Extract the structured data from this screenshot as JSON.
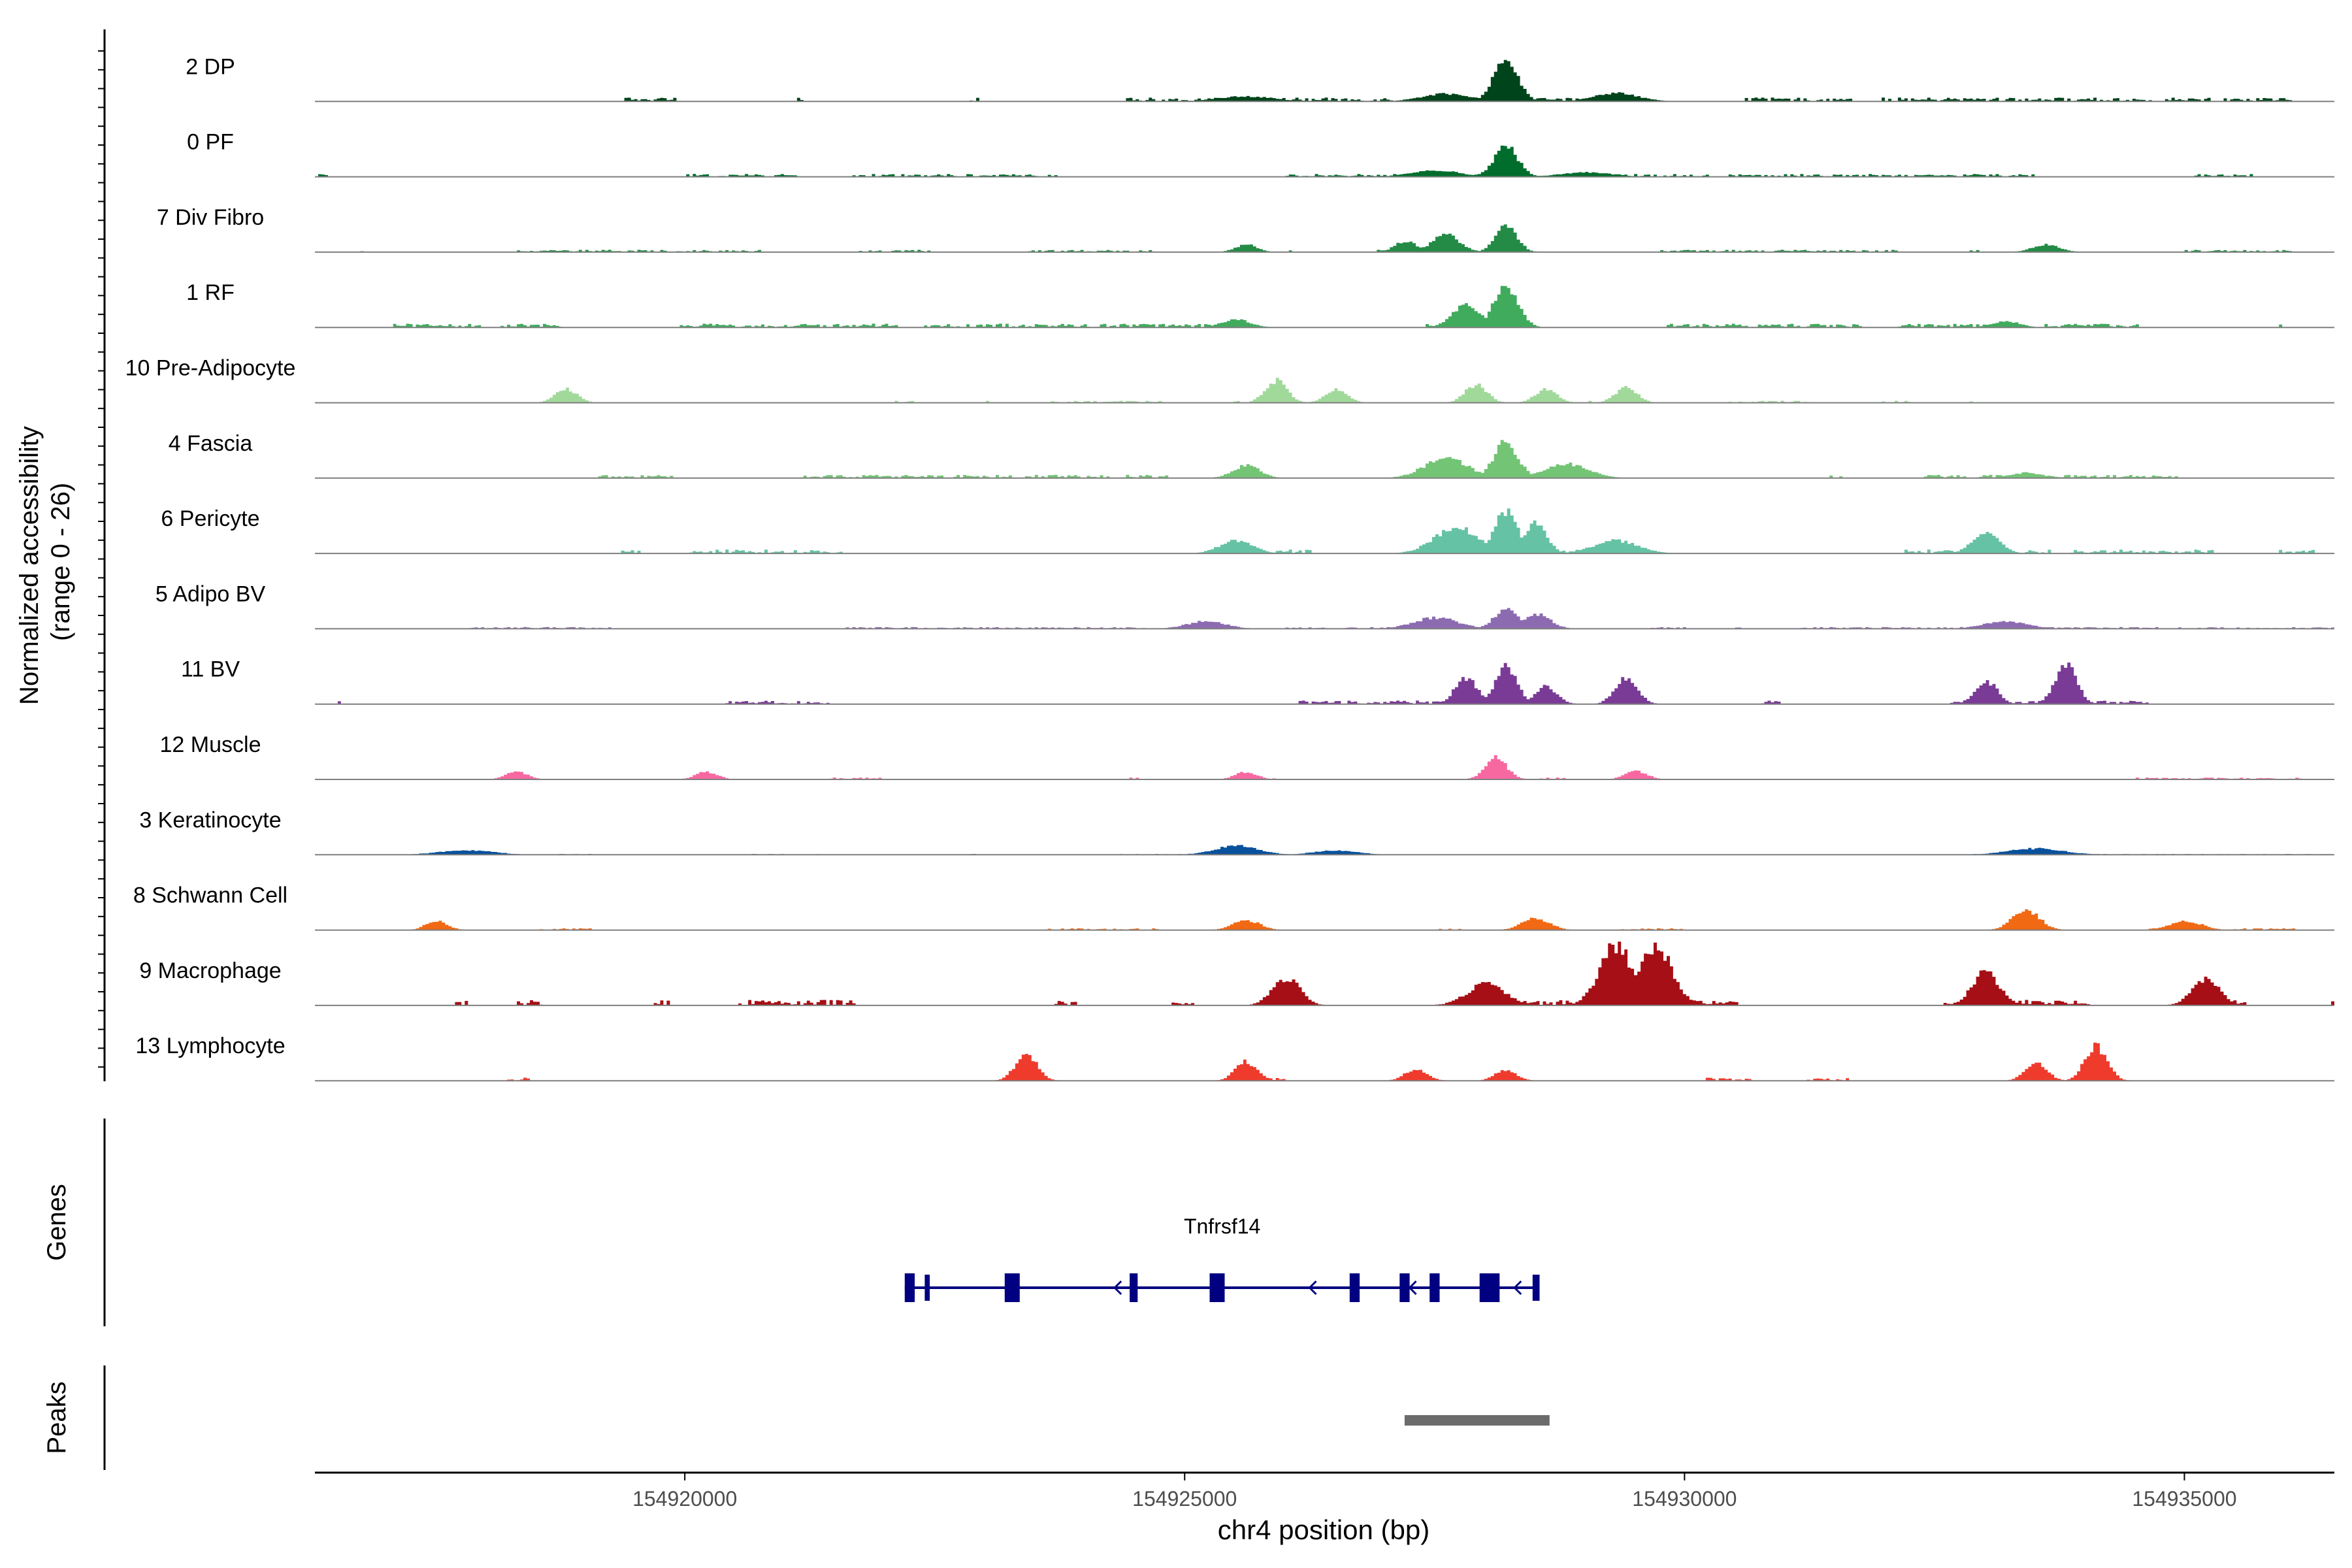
{
  "chart_data": {
    "type": "area",
    "title": "",
    "y_axis_label_line1": "Normalized accessibility",
    "y_axis_label_line2": "(range 0 - 26)",
    "y_range": [
      0,
      26
    ],
    "xlabel": "chr4 position (bp)",
    "xlim": [
      154916300,
      154936500
    ],
    "x_ticks": [
      {
        "value": 154920000,
        "label": "154920000"
      },
      {
        "value": 154925000,
        "label": "154925000"
      },
      {
        "value": 154930000,
        "label": "154930000"
      },
      {
        "value": 154935000,
        "label": "154935000"
      }
    ],
    "tracks": [
      {
        "name": "2 DP",
        "color": "#00441b",
        "amp": 0.9,
        "density": 0.55,
        "main_peak": 154928200,
        "main_h": 0.6,
        "peaks": [
          [
            154928200,
            22,
            1.0
          ],
          [
            154927600,
            45,
            0.18
          ],
          [
            154929300,
            40,
            0.2
          ],
          [
            154925600,
            50,
            0.12
          ]
        ]
      },
      {
        "name": "0 PF",
        "color": "#006d2c",
        "amp": 0.9,
        "density": 0.5,
        "main_peak": 154928200,
        "main_h": 0.45,
        "peaks": [
          [
            154928200,
            22,
            1.0
          ],
          [
            154927500,
            45,
            0.2
          ],
          [
            154929000,
            45,
            0.15
          ]
        ]
      },
      {
        "name": "7 Div Fibro",
        "color": "#238b45",
        "amp": 1.0,
        "density": 0.35,
        "main_peak": 154928200,
        "main_h": 0.4,
        "peaks": [
          [
            154928200,
            20,
            1.0
          ],
          [
            154927600,
            25,
            0.7
          ],
          [
            154927200,
            20,
            0.45
          ],
          [
            154933600,
            25,
            0.3
          ],
          [
            154925600,
            20,
            0.3
          ]
        ]
      },
      {
        "name": "1 RF",
        "color": "#41ab5d",
        "amp": 1.0,
        "density": 0.5,
        "main_peak": 154928200,
        "main_h": 0.6,
        "peaks": [
          [
            154928200,
            22,
            1.0
          ],
          [
            154927800,
            25,
            0.55
          ],
          [
            154925500,
            25,
            0.2
          ],
          [
            154933200,
            25,
            0.15
          ]
        ]
      },
      {
        "name": "10 Pre-Adipocyte",
        "color": "#a1d99b",
        "amp": 1.0,
        "density": 0.25,
        "main_peak": 154925900,
        "main_h": 0.36,
        "peaks": [
          [
            154925900,
            20,
            1.0
          ],
          [
            154927900,
            20,
            0.8
          ],
          [
            154929400,
            20,
            0.7
          ],
          [
            154918800,
            20,
            0.6
          ],
          [
            154928600,
            20,
            0.6
          ],
          [
            154926500,
            20,
            0.6
          ]
        ]
      },
      {
        "name": "4 Fascia",
        "color": "#74c476",
        "amp": 1.0,
        "density": 0.45,
        "main_peak": 154928200,
        "main_h": 0.55,
        "peaks": [
          [
            154928200,
            22,
            1.0
          ],
          [
            154927600,
            40,
            0.55
          ],
          [
            154928800,
            40,
            0.4
          ],
          [
            154925600,
            25,
            0.35
          ],
          [
            154933400,
            30,
            0.15
          ]
        ]
      },
      {
        "name": "6 Pericyte",
        "color": "#66c2a4",
        "amp": 1.0,
        "density": 0.45,
        "main_peak": 154928200,
        "main_h": 0.65,
        "peaks": [
          [
            154928200,
            22,
            1.0
          ],
          [
            154928500,
            20,
            0.7
          ],
          [
            154927700,
            40,
            0.6
          ],
          [
            154933000,
            25,
            0.45
          ],
          [
            154925500,
            30,
            0.3
          ],
          [
            154929300,
            40,
            0.3
          ]
        ]
      },
      {
        "name": "5 Adipo BV",
        "color": "#8c6bb1",
        "amp": 1.0,
        "density": 0.4,
        "main_peak": 154928200,
        "main_h": 0.3,
        "peaks": [
          [
            154928200,
            22,
            1.0
          ],
          [
            154928500,
            25,
            0.8
          ],
          [
            154927500,
            40,
            0.6
          ],
          [
            154925200,
            35,
            0.4
          ],
          [
            154933200,
            40,
            0.4
          ]
        ]
      },
      {
        "name": "11 BV",
        "color": "#7a3b96",
        "amp": 1.0,
        "density": 0.2,
        "main_peak": 154928200,
        "main_h": 0.6,
        "peaks": [
          [
            154928200,
            20,
            1.0
          ],
          [
            154933800,
            20,
            1.0
          ],
          [
            154927800,
            20,
            0.7
          ],
          [
            154929400,
            20,
            0.7
          ],
          [
            154933000,
            20,
            0.6
          ],
          [
            154928600,
            20,
            0.45
          ]
        ]
      },
      {
        "name": "12 Muscle",
        "color": "#f768a1",
        "amp": 1.0,
        "density": 0.12,
        "main_peak": 154928100,
        "main_h": 0.35,
        "peaks": [
          [
            154928100,
            20,
            1.0
          ],
          [
            154929500,
            20,
            0.4
          ],
          [
            154925600,
            20,
            0.35
          ],
          [
            154918300,
            20,
            0.35
          ],
          [
            154920200,
            20,
            0.35
          ]
        ]
      },
      {
        "name": "3 Keratinocyte",
        "color": "#08519c",
        "amp": 1.0,
        "density": 0.5,
        "main_peak": 154925500,
        "main_h": 0.14,
        "peaks": [
          [
            154925500,
            40,
            1.0
          ],
          [
            154933500,
            50,
            0.7
          ],
          [
            154917800,
            50,
            0.5
          ],
          [
            154926500,
            40,
            0.5
          ]
        ]
      },
      {
        "name": "8 Schwann Cell",
        "color": "#f16913",
        "amp": 1.0,
        "density": 0.3,
        "main_peak": 154933400,
        "main_h": 0.3,
        "peaks": [
          [
            154933400,
            25,
            1.0
          ],
          [
            154928500,
            25,
            0.6
          ],
          [
            154925600,
            25,
            0.5
          ],
          [
            154917500,
            20,
            0.45
          ],
          [
            154935000,
            30,
            0.45
          ]
        ]
      },
      {
        "name": "9 Macrophage",
        "color": "#a50f15",
        "amp": 1.0,
        "density": 0.35,
        "main_peak": 154929300,
        "main_h": 0.92,
        "peaks": [
          [
            154929300,
            30,
            1.0
          ],
          [
            154929700,
            30,
            0.95
          ],
          [
            154935200,
            25,
            0.45
          ],
          [
            154926000,
            25,
            0.45
          ],
          [
            154933000,
            25,
            0.55
          ],
          [
            154928000,
            35,
            0.35
          ]
        ]
      },
      {
        "name": "13 Lymphocyte",
        "color": "#ef3b2c",
        "amp": 1.0,
        "density": 0.1,
        "main_peak": 154934100,
        "main_h": 0.55,
        "peaks": [
          [
            154934100,
            20,
            1.0
          ],
          [
            154923400,
            20,
            0.75
          ],
          [
            154925600,
            20,
            0.55
          ],
          [
            154933500,
            20,
            0.5
          ],
          [
            154927300,
            20,
            0.35
          ],
          [
            154928200,
            20,
            0.3
          ]
        ]
      }
    ],
    "genes_panel_label": "Genes",
    "gene": {
      "name": "Tnfrsf14",
      "strand": "-",
      "start": 154922200,
      "end": 154928550,
      "exons": [
        [
          154922200,
          154922300
        ],
        [
          154922400,
          154922450
        ],
        [
          154923200,
          154923350
        ],
        [
          154924450,
          154924530
        ],
        [
          154925250,
          154925400
        ],
        [
          154926650,
          154926750
        ],
        [
          154927150,
          154927250
        ],
        [
          154927450,
          154927550
        ],
        [
          154927950,
          154928150
        ],
        [
          154928480,
          154928550
        ]
      ],
      "color": "#000080"
    },
    "peaks_panel_label": "Peaks",
    "peak_region": [
      154927200,
      154928650
    ],
    "peak_color": "#6b6b6b"
  }
}
